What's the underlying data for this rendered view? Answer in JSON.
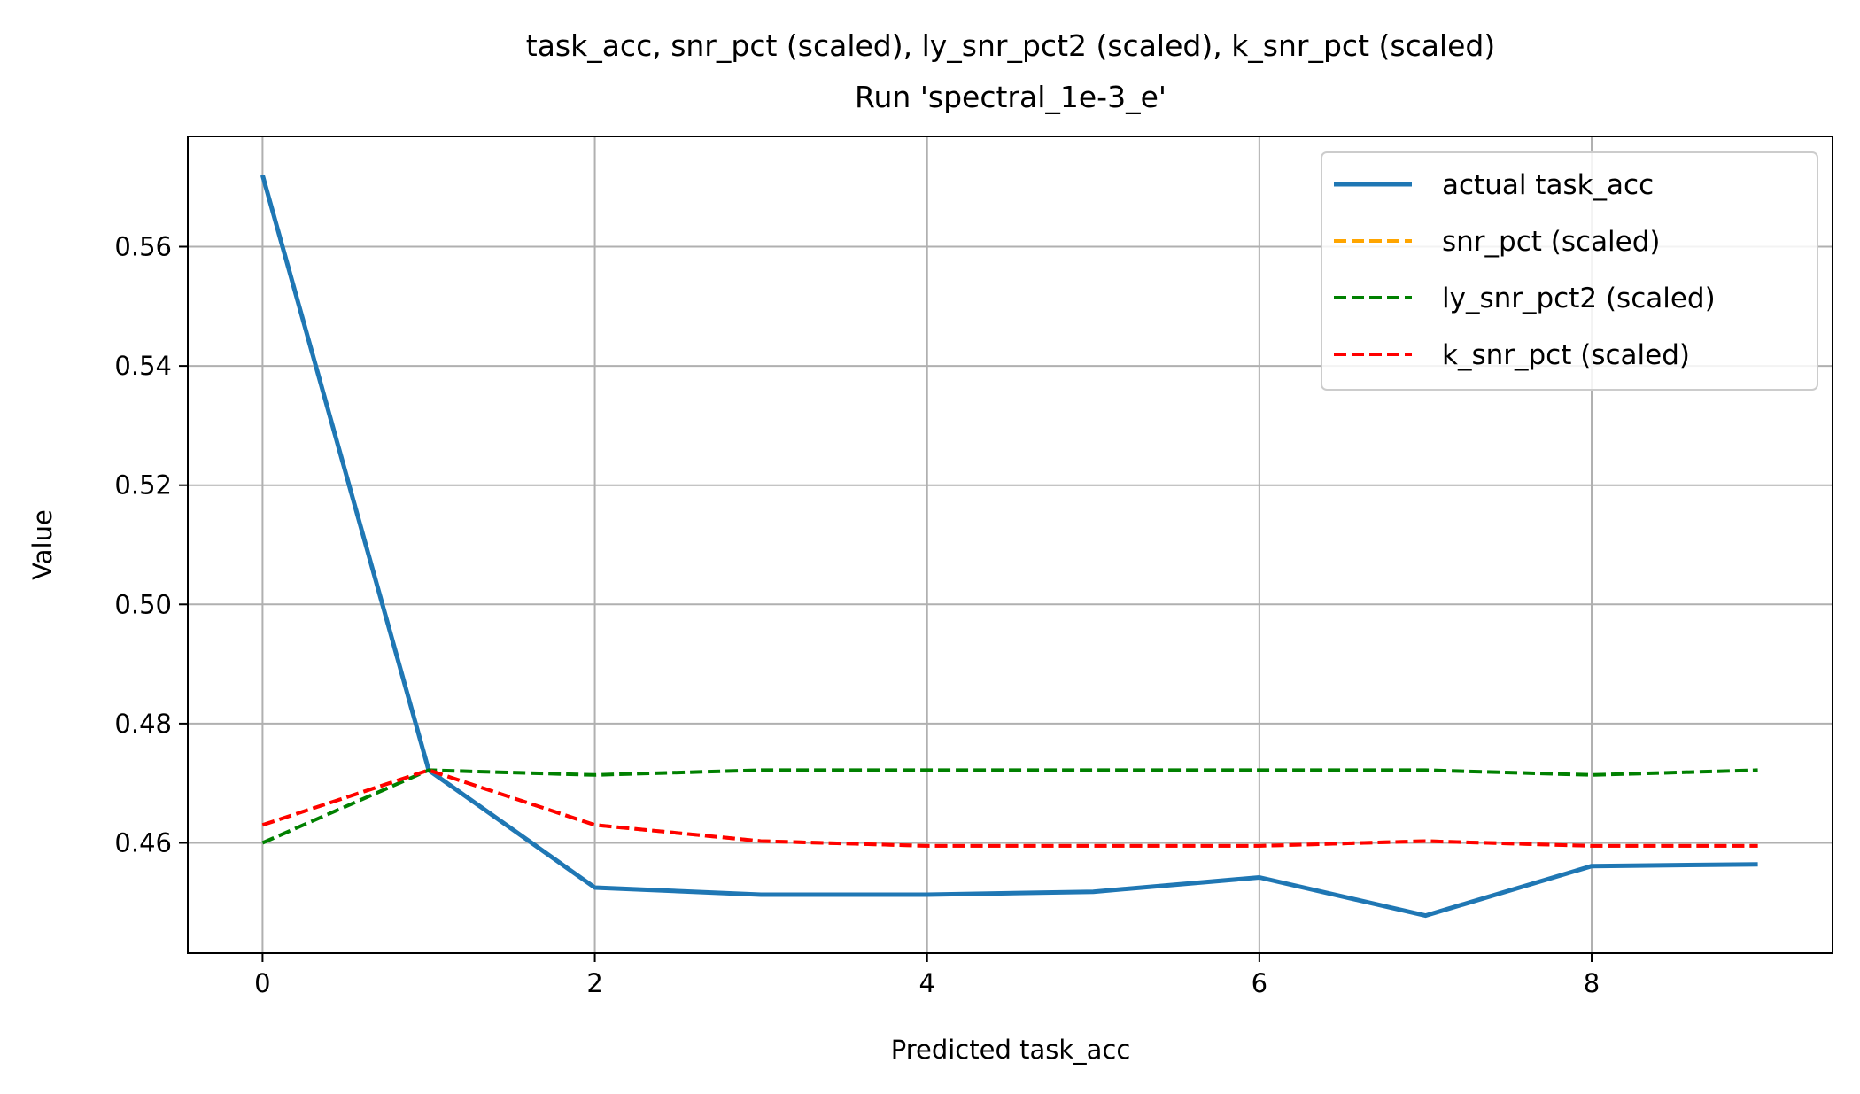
{
  "chart_data": {
    "type": "line",
    "title": "task_acc, snr_pct (scaled), ly_snr_pct2 (scaled), k_snr_pct (scaled)",
    "subtitle": "Run 'spectral_1e-3_e'",
    "xlabel": "Predicted task_acc",
    "ylabel": "Value",
    "xlim": [
      -0.45,
      9.45
    ],
    "ylim": [
      0.4415,
      0.5785
    ],
    "xticks": [
      0,
      2,
      4,
      6,
      8
    ],
    "yticks": [
      0.46,
      0.48,
      0.5,
      0.52,
      0.54,
      0.56
    ],
    "ytick_labels": [
      "0.46",
      "0.48",
      "0.50",
      "0.52",
      "0.54",
      "0.56"
    ],
    "grid": true,
    "legend_position": "top-right",
    "x": [
      0,
      1,
      2,
      3,
      4,
      5,
      6,
      7,
      8,
      9
    ],
    "series": [
      {
        "name": "actual task_acc",
        "color": "#1f77b4",
        "style": "solid",
        "values": [
          0.572,
          0.4722,
          0.4525,
          0.4513,
          0.4513,
          0.4518,
          0.4542,
          0.4478,
          0.4561,
          0.4564
        ]
      },
      {
        "name": "snr_pct (scaled)",
        "color": "#ffa500",
        "style": "dashed",
        "values": [
          0.463,
          0.4722,
          0.463,
          0.4603,
          0.4595,
          0.4595,
          0.4595,
          0.4603,
          0.4595,
          0.4595
        ]
      },
      {
        "name": "ly_snr_pct2 (scaled)",
        "color": "#008000",
        "style": "dashed",
        "values": [
          0.46,
          0.4722,
          0.4714,
          0.4722,
          0.4722,
          0.4722,
          0.4722,
          0.4722,
          0.4714,
          0.4722
        ]
      },
      {
        "name": "k_snr_pct (scaled)",
        "color": "#ff0000",
        "style": "dashed",
        "values": [
          0.463,
          0.4722,
          0.463,
          0.4603,
          0.4595,
          0.4595,
          0.4595,
          0.4603,
          0.4595,
          0.4595
        ]
      }
    ]
  }
}
